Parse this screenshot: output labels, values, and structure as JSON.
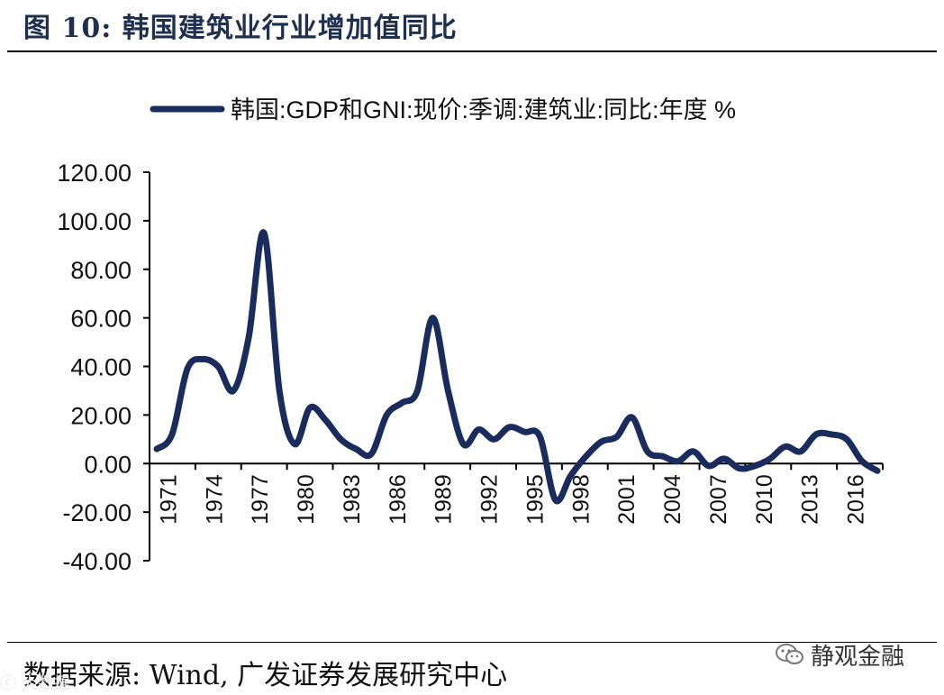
{
  "figure": {
    "title": "图 10:  韩国建筑业行业增加值同比",
    "source": "数据来源: Wind, 广发证券发展研究中心",
    "watermark_left": "ⓒ 大数据",
    "brand": "静观金融",
    "brand_icon": "wechat-icon"
  },
  "chart_data": {
    "type": "line",
    "title": "",
    "legend": {
      "placement": "top-center",
      "label": "韩国:GDP和GNI:现价:季调:建筑业:同比:年度 %"
    },
    "xlabel": "",
    "ylabel": "",
    "ylim": [
      -40,
      120
    ],
    "ytick_values": [
      120,
      100,
      80,
      60,
      40,
      20,
      0,
      -20,
      -40
    ],
    "ytick_labels": [
      "120.00",
      "100.00",
      "80.00",
      "60.00",
      "40.00",
      "20.00",
      "0.00",
      "-20.00",
      "-40.00"
    ],
    "xlim": [
      1971,
      2018
    ],
    "xtick_labels": [
      "1971",
      "1974",
      "1977",
      "1980",
      "1983",
      "1986",
      "1989",
      "1992",
      "1995",
      "1998",
      "2001",
      "2004",
      "2007",
      "2010",
      "2013",
      "2016"
    ],
    "grid": false,
    "line_color": "#1a2b5e",
    "series": [
      {
        "name": "韩国:GDP和GNI:现价:季调:建筑业:同比:年度 %",
        "x": [
          1971,
          1972,
          1973,
          1974,
          1975,
          1976,
          1977,
          1978,
          1979,
          1980,
          1981,
          1982,
          1983,
          1984,
          1985,
          1986,
          1987,
          1988,
          1989,
          1990,
          1991,
          1992,
          1993,
          1994,
          1995,
          1996,
          1997,
          1998,
          1999,
          2000,
          2001,
          2002,
          2003,
          2004,
          2005,
          2006,
          2007,
          2008,
          2009,
          2010,
          2011,
          2012,
          2013,
          2014,
          2015,
          2016,
          2017,
          2018
        ],
        "values": [
          6,
          12,
          39,
          43,
          40,
          30,
          52,
          95,
          30,
          8,
          23,
          18,
          10,
          6,
          4,
          20,
          25,
          30,
          60,
          30,
          8,
          14,
          10,
          15,
          13,
          11,
          -15,
          -5,
          3,
          9,
          11,
          19,
          5,
          3,
          1,
          5,
          -1,
          2,
          -2,
          -1,
          2,
          7,
          5,
          12,
          12,
          10,
          1,
          -3
        ]
      }
    ]
  }
}
